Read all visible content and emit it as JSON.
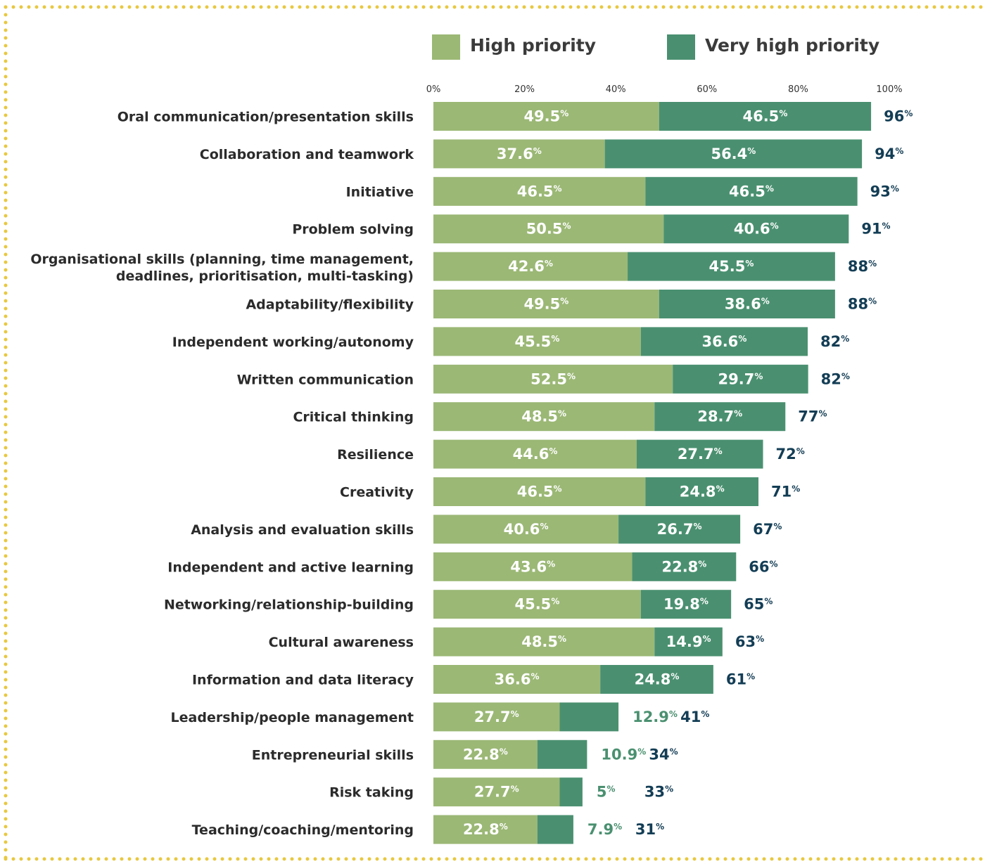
{
  "colors": {
    "high": "#9bb875",
    "very_high": "#4a9070",
    "total": "#133d55",
    "border": "#e8c840"
  },
  "legend": {
    "high": "High priority",
    "very_high": "Very high priority"
  },
  "chart_data": {
    "type": "bar",
    "orientation": "horizontal",
    "stacked": true,
    "xlim": [
      0,
      100
    ],
    "ticks": [
      "0%",
      "20%",
      "40%",
      "60%",
      "80%",
      "100%"
    ],
    "tick_values": [
      0,
      20,
      40,
      60,
      80,
      100
    ],
    "legend_position": "top",
    "grid": false,
    "value_suffix": "%",
    "categories": [
      "Oral communication/presentation skills",
      "Collaboration and teamwork",
      "Initiative",
      "Problem solving",
      "Organisational skills (planning, time management, deadlines, prioritisation, multi-tasking)",
      "Adaptability/flexibility",
      "Independent working/autonomy",
      "Written communication",
      "Critical thinking",
      "Resilience",
      "Creativity",
      "Analysis and evaluation skills",
      "Independent and active learning",
      "Networking/relationship-building",
      "Cultural awareness",
      "Information and data literacy",
      "Leadership/people management",
      "Entrepreneurial skills",
      "Risk taking",
      "Teaching/coaching/mentoring"
    ],
    "series": [
      {
        "name": "High priority",
        "values": [
          49.5,
          37.6,
          46.5,
          50.5,
          42.6,
          49.5,
          45.5,
          52.5,
          48.5,
          44.6,
          46.5,
          40.6,
          43.6,
          45.5,
          48.5,
          36.6,
          27.7,
          22.8,
          27.7,
          22.8
        ]
      },
      {
        "name": "Very high priority",
        "values": [
          46.5,
          56.4,
          46.5,
          40.6,
          45.5,
          38.6,
          36.6,
          29.7,
          28.7,
          27.7,
          24.8,
          26.7,
          22.8,
          19.8,
          14.9,
          24.8,
          12.9,
          10.9,
          5,
          7.9
        ]
      }
    ],
    "totals": [
      96,
      94,
      93,
      91,
      88,
      88,
      82,
      82,
      77,
      72,
      71,
      67,
      66,
      65,
      63,
      61,
      41,
      34,
      33,
      31
    ]
  }
}
